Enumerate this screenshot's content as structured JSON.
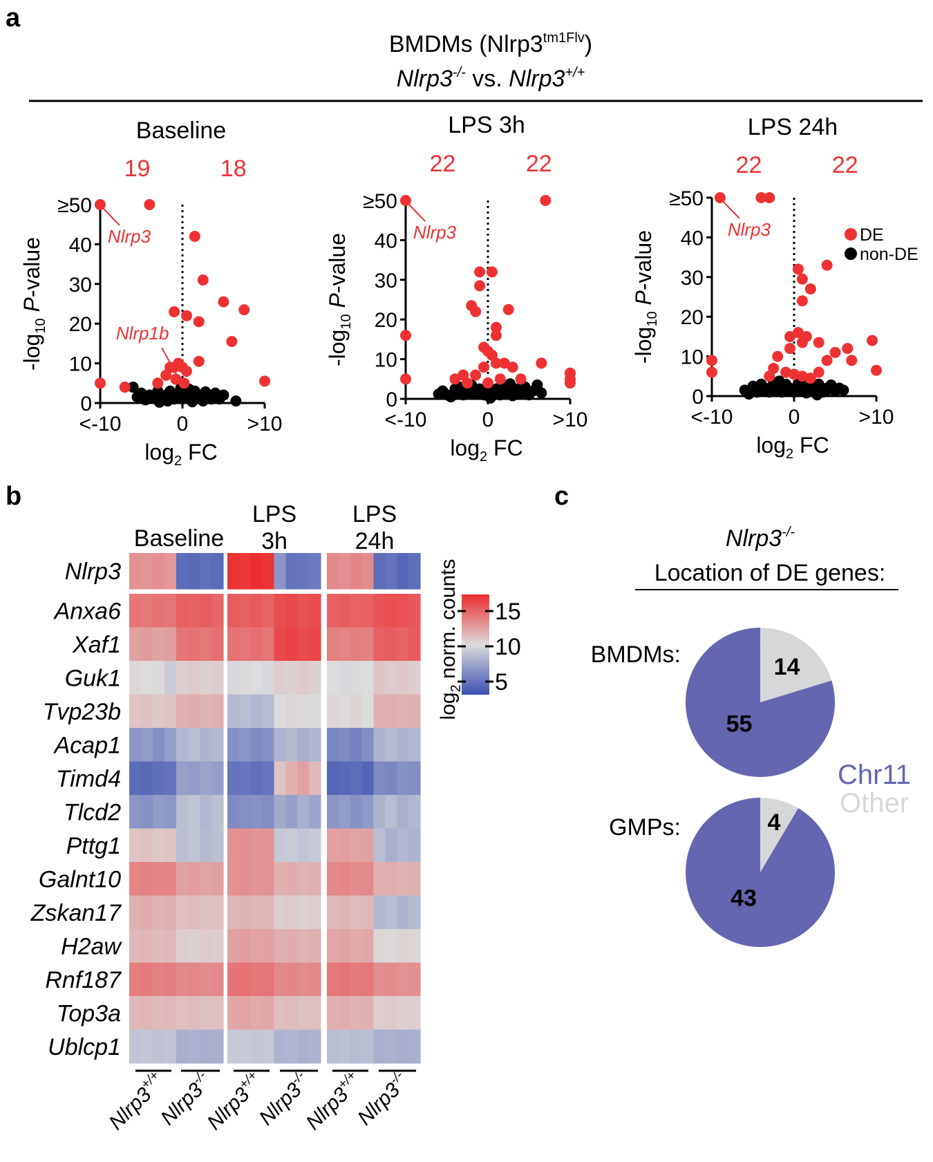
{
  "panel_labels": {
    "a": "a",
    "b": "b",
    "c": "c"
  },
  "header": {
    "line1_prefix": "BMDMs (Nlrp3",
    "line1_sup": "tm1Flv",
    "line1_suffix": ")",
    "line2_ko": "Nlrp3",
    "line2_ko_sup": "-/-",
    "line2_vs": " vs. ",
    "line2_wt": "Nlrp3",
    "line2_wt_sup": "+/+"
  },
  "colors": {
    "de": "#ee3233",
    "nonde": "#000000",
    "chr11": "#6466b0",
    "other": "#d6d7d9",
    "heat_high": "#ec2b2e",
    "heat_mid": "#dcdcdc",
    "heat_low": "#3a4fb0"
  },
  "chart_data": [
    {
      "type": "scatter",
      "panel": "a",
      "title": "Baseline",
      "count_down": "19",
      "count_up": "18",
      "xlabel": "log2 FC",
      "ylabel": "-log10 P-value",
      "xticks": [
        "<-10",
        "0",
        ">10"
      ],
      "yticks": [
        "0",
        "10",
        "20",
        "30",
        "40",
        "≥50"
      ],
      "xlim": [
        -10,
        10
      ],
      "ylim": [
        0,
        50
      ],
      "annotations": [
        {
          "text": "Nlrp3",
          "x": -10,
          "y": 50
        },
        {
          "text": "Nlrp1b",
          "x": -1.5,
          "y": 5
        }
      ],
      "de_points": [
        [
          -10,
          50
        ],
        [
          -4,
          50
        ],
        [
          1.5,
          42
        ],
        [
          -1,
          23
        ],
        [
          0.5,
          22
        ],
        [
          2,
          20.5
        ],
        [
          2.5,
          31
        ],
        [
          5,
          25.5
        ],
        [
          7.5,
          23.5
        ],
        [
          6,
          15.5
        ],
        [
          2,
          10.5
        ],
        [
          -10,
          5
        ],
        [
          -7,
          4
        ],
        [
          -1.5,
          9
        ],
        [
          -1,
          9
        ],
        [
          -0.5,
          10
        ],
        [
          0,
          9
        ],
        [
          0.5,
          8
        ],
        [
          -2,
          7
        ],
        [
          -0.8,
          6
        ],
        [
          0.2,
          5
        ],
        [
          10,
          5.5
        ],
        [
          -3,
          5
        ]
      ],
      "nonde_points": [
        [
          -6,
          4
        ],
        [
          -5,
          2.5
        ],
        [
          -4,
          2
        ],
        [
          -3.5,
          1.5
        ],
        [
          -3,
          3
        ],
        [
          -2.5,
          1
        ],
        [
          -2,
          2
        ],
        [
          -1.5,
          3
        ],
        [
          -1,
          1
        ],
        [
          -0.5,
          2.5
        ],
        [
          0,
          1
        ],
        [
          0.5,
          2
        ],
        [
          1,
          1
        ],
        [
          1.5,
          3
        ],
        [
          2,
          1.5
        ],
        [
          2.5,
          0.5
        ],
        [
          3,
          2
        ],
        [
          3.5,
          1
        ],
        [
          4,
          2.5
        ],
        [
          4.5,
          1
        ],
        [
          5,
          2
        ],
        [
          6.5,
          0.5
        ],
        [
          -4.5,
          0.8
        ],
        [
          -5.5,
          1.5
        ],
        [
          0.8,
          3.5
        ],
        [
          -0.2,
          3.8
        ],
        [
          1.2,
          0.3
        ],
        [
          2.8,
          2.8
        ],
        [
          -2.8,
          0.2
        ],
        [
          -1.8,
          0.5
        ]
      ]
    },
    {
      "type": "scatter",
      "panel": "a",
      "title": "LPS 3h",
      "count_down": "22",
      "count_up": "22",
      "xlabel": "log2 FC",
      "ylabel": "-log10 P-value",
      "xticks": [
        "<-10",
        "0",
        ">10"
      ],
      "yticks": [
        "0",
        "10",
        "20",
        "30",
        "40",
        "≥50"
      ],
      "xlim": [
        -10,
        10
      ],
      "ylim": [
        0,
        50
      ],
      "annotations": [
        {
          "text": "Nlrp3",
          "x": -10,
          "y": 50
        }
      ],
      "de_points": [
        [
          -10,
          50
        ],
        [
          7,
          50
        ],
        [
          -10,
          16
        ],
        [
          -10,
          5
        ],
        [
          -1,
          32
        ],
        [
          0.5,
          32
        ],
        [
          -1,
          28.5
        ],
        [
          -2,
          23.5
        ],
        [
          -1.5,
          22
        ],
        [
          2.5,
          22.5
        ],
        [
          1,
          18
        ],
        [
          1,
          16
        ],
        [
          -0.5,
          13
        ],
        [
          0,
          12
        ],
        [
          0.5,
          11
        ],
        [
          1,
          9
        ],
        [
          2,
          9
        ],
        [
          3,
          8
        ],
        [
          6.5,
          9
        ],
        [
          10,
          6.5
        ],
        [
          10,
          5
        ],
        [
          10,
          4
        ],
        [
          -0.5,
          8
        ],
        [
          -1.5,
          6
        ],
        [
          -3,
          6
        ],
        [
          -4,
          5
        ],
        [
          -2.5,
          4
        ],
        [
          1.5,
          5
        ],
        [
          0,
          4
        ],
        [
          4,
          5
        ]
      ],
      "nonde_points": [
        [
          -5,
          1
        ],
        [
          -4,
          2.5
        ],
        [
          -3.5,
          3
        ],
        [
          -3,
          1
        ],
        [
          -2.5,
          2
        ],
        [
          -2,
          3.5
        ],
        [
          -1.5,
          1.5
        ],
        [
          -1,
          2.5
        ],
        [
          -0.5,
          1
        ],
        [
          0,
          3
        ],
        [
          0.5,
          1.5
        ],
        [
          1,
          2.5
        ],
        [
          1.5,
          1
        ],
        [
          2,
          3
        ],
        [
          2.5,
          2
        ],
        [
          3,
          0.8
        ],
        [
          3.5,
          2.5
        ],
        [
          4,
          1.5
        ],
        [
          4.5,
          3
        ],
        [
          5,
          1
        ],
        [
          5.5,
          2
        ],
        [
          6,
          3.5
        ],
        [
          6.5,
          1.5
        ],
        [
          -4.5,
          0.5
        ],
        [
          -5.5,
          2
        ],
        [
          -6,
          1.2
        ],
        [
          0.3,
          0.2
        ],
        [
          2.7,
          3.8
        ]
      ]
    },
    {
      "type": "scatter",
      "panel": "a",
      "title": "LPS 24h",
      "count_down": "22",
      "count_up": "22",
      "xlabel": "log2 FC",
      "ylabel": "-log10 P-value",
      "xticks": [
        "<-10",
        "0",
        ">10"
      ],
      "yticks": [
        "0",
        "10",
        "20",
        "30",
        "40",
        "≥50"
      ],
      "xlim": [
        -10,
        10
      ],
      "ylim": [
        0,
        50
      ],
      "annotations": [
        {
          "text": "Nlrp3",
          "x": -9,
          "y": 50
        }
      ],
      "de_points": [
        [
          -9,
          50
        ],
        [
          -4,
          50
        ],
        [
          -3,
          50
        ],
        [
          0.5,
          32
        ],
        [
          1,
          29.5
        ],
        [
          2,
          27
        ],
        [
          4,
          33
        ],
        [
          1,
          24
        ],
        [
          0.5,
          16
        ],
        [
          1.5,
          15
        ],
        [
          1,
          13.5
        ],
        [
          -0.5,
          15
        ],
        [
          -0.5,
          12
        ],
        [
          3,
          13.5
        ],
        [
          6.5,
          12
        ],
        [
          5,
          11
        ],
        [
          10,
          6.5
        ],
        [
          9.5,
          14
        ],
        [
          -10,
          9
        ],
        [
          -10,
          6
        ],
        [
          -2.5,
          7
        ],
        [
          -2,
          10
        ],
        [
          -1,
          6
        ],
        [
          0,
          5.5
        ],
        [
          1,
          5
        ],
        [
          2,
          4.5
        ],
        [
          3,
          6
        ],
        [
          7,
          9
        ],
        [
          -3,
          5
        ],
        [
          4,
          9
        ]
      ],
      "nonde_points": [
        [
          -6,
          1.5
        ],
        [
          -5,
          2.5
        ],
        [
          -4.5,
          1
        ],
        [
          -4,
          3
        ],
        [
          -3.5,
          2
        ],
        [
          -3,
          1
        ],
        [
          -2.5,
          3.5
        ],
        [
          -2,
          2
        ],
        [
          -1.5,
          1
        ],
        [
          -1,
          3
        ],
        [
          -0.5,
          2
        ],
        [
          0,
          1
        ],
        [
          0.5,
          3
        ],
        [
          1,
          2
        ],
        [
          1.5,
          0.8
        ],
        [
          2,
          2.5
        ],
        [
          2.5,
          1.5
        ],
        [
          3,
          3
        ],
        [
          3.5,
          1
        ],
        [
          4,
          2
        ],
        [
          4.5,
          2.8
        ],
        [
          5,
          1.2
        ],
        [
          5.5,
          2
        ],
        [
          6,
          1.5
        ],
        [
          -5.5,
          0.5
        ],
        [
          -1.8,
          3.8
        ],
        [
          0.8,
          3.8
        ],
        [
          2.8,
          0.3
        ]
      ]
    },
    {
      "type": "heatmap",
      "panel": "b",
      "group_titles": [
        [
          "Baseline"
        ],
        [
          "LPS",
          "3h"
        ],
        [
          "LPS",
          "24h"
        ]
      ],
      "colorbar_label": "log2 norm. counts",
      "colorbar_ticks": [
        "15",
        "10",
        "5"
      ],
      "zlim": [
        3,
        16
      ],
      "column_groups": [
        "Nlrp3+/+",
        "Nlrp3-/-",
        "Nlrp3+/+",
        "Nlrp3-/-",
        "Nlrp3+/+",
        "Nlrp3-/-"
      ],
      "genotype_base": "Nlrp3",
      "genotype_sups": [
        "+/+",
        "-/-",
        "+/+",
        "-/-",
        "+/+",
        "-/-"
      ],
      "rows": [
        "Nlrp3",
        "Anxa6",
        "Xaf1",
        "Guk1",
        "Tvp23b",
        "Acap1",
        "Timd4",
        "Tlcd2",
        "Pttg1",
        "Galnt10",
        "Zskan17",
        "H2aw",
        "Rnf187",
        "Top3a",
        "Ublcp1"
      ],
      "values": [
        [
          12.5,
          12.4,
          12.6,
          12.3,
          4.5,
          4.3,
          4.6,
          4.4,
          15.8,
          15.6,
          15.9,
          15.7,
          6.5,
          4.8,
          5.0,
          5.2,
          12.8,
          12.6,
          12.9,
          12.7,
          4.5,
          4.8,
          4.2,
          4.6
        ],
        [
          13.5,
          13.4,
          13.6,
          13.5,
          14.2,
          14.1,
          14.3,
          14.0,
          14.3,
          14.2,
          14.4,
          14.1,
          14.8,
          15.0,
          14.7,
          14.9,
          14.2,
          14.3,
          14.1,
          14.2,
          14.6,
          14.8,
          14.7,
          14.5
        ],
        [
          12.0,
          12.2,
          11.9,
          12.1,
          13.5,
          13.6,
          13.4,
          13.7,
          13.6,
          13.5,
          13.7,
          13.5,
          15.0,
          15.2,
          14.9,
          15.1,
          13.1,
          13.0,
          13.2,
          13.1,
          14.2,
          14.3,
          14.1,
          14.4
        ],
        [
          10.2,
          10.0,
          10.1,
          9.2,
          10.5,
          10.6,
          10.4,
          10.5,
          9.8,
          9.9,
          10.0,
          9.8,
          10.5,
          10.4,
          10.6,
          10.4,
          10.0,
          9.8,
          10.1,
          10.0,
          10.8,
          10.6,
          10.7,
          10.5
        ],
        [
          10.8,
          10.9,
          10.7,
          10.8,
          11.5,
          11.6,
          11.4,
          11.5,
          8.3,
          8.5,
          8.2,
          8.4,
          10.0,
          10.2,
          10.1,
          9.9,
          10.2,
          10.1,
          10.3,
          10.0,
          11.5,
          11.6,
          11.4,
          11.5
        ],
        [
          6.5,
          6.8,
          6.2,
          7.0,
          8.2,
          8.5,
          8.0,
          8.3,
          6.2,
          6.5,
          6.0,
          6.3,
          8.0,
          8.3,
          7.8,
          8.1,
          5.8,
          6.0,
          5.5,
          6.1,
          8.0,
          8.3,
          7.9,
          8.2
        ],
        [
          4.5,
          4.3,
          4.6,
          4.8,
          7.0,
          6.8,
          7.2,
          6.9,
          4.8,
          5.0,
          4.6,
          4.9,
          10.8,
          11.5,
          12.0,
          11.2,
          4.2,
          4.3,
          4.5,
          4.1,
          6.0,
          5.8,
          6.3,
          6.1
        ],
        [
          6.5,
          6.3,
          6.8,
          6.6,
          8.5,
          8.8,
          8.2,
          8.6,
          6.0,
          6.2,
          6.3,
          6.1,
          7.5,
          7.0,
          7.8,
          7.2,
          6.5,
          6.8,
          6.3,
          6.7,
          8.0,
          8.5,
          7.8,
          8.2
        ],
        [
          10.8,
          10.9,
          10.7,
          10.8,
          8.5,
          8.8,
          8.3,
          8.6,
          12.5,
          12.6,
          12.4,
          12.5,
          9.0,
          9.2,
          8.8,
          9.1,
          12.0,
          12.1,
          11.9,
          12.0,
          8.5,
          7.8,
          8.2,
          8.0
        ],
        [
          13.0,
          13.1,
          12.9,
          13.0,
          12.0,
          12.1,
          11.9,
          12.0,
          12.5,
          12.6,
          12.4,
          12.5,
          11.5,
          11.6,
          11.4,
          11.5,
          12.8,
          12.9,
          12.7,
          12.8,
          11.5,
          11.6,
          11.4,
          11.5
        ],
        [
          11.5,
          11.6,
          11.4,
          11.5,
          11.0,
          11.1,
          10.9,
          11.0,
          11.3,
          11.4,
          11.2,
          11.3,
          10.5,
          10.6,
          10.4,
          10.5,
          11.2,
          11.3,
          11.1,
          11.2,
          8.2,
          8.5,
          8.0,
          8.3
        ],
        [
          11.2,
          11.3,
          11.1,
          11.2,
          10.5,
          10.4,
          10.6,
          10.5,
          12.0,
          12.1,
          11.9,
          12.0,
          11.5,
          11.6,
          11.4,
          11.5,
          11.8,
          11.9,
          11.7,
          11.8,
          10.2,
          10.1,
          10.3,
          10.2
        ],
        [
          13.2,
          13.3,
          13.1,
          13.2,
          12.8,
          12.9,
          12.7,
          12.8,
          13.5,
          13.6,
          13.4,
          13.5,
          12.8,
          12.9,
          12.7,
          12.8,
          13.4,
          13.5,
          13.3,
          13.4,
          12.6,
          12.7,
          12.5,
          12.6
        ],
        [
          11.2,
          11.3,
          11.1,
          11.2,
          11.0,
          11.1,
          10.9,
          11.0,
          11.8,
          11.9,
          11.7,
          11.8,
          11.0,
          11.1,
          10.9,
          11.0,
          11.5,
          11.6,
          11.4,
          11.5,
          10.5,
          10.6,
          10.4,
          10.5
        ],
        [
          8.8,
          8.9,
          8.7,
          8.8,
          7.8,
          7.9,
          7.7,
          7.8,
          9.0,
          9.1,
          8.9,
          9.0,
          8.0,
          8.1,
          7.9,
          8.0,
          8.5,
          8.6,
          8.4,
          8.5,
          7.8,
          7.9,
          7.7,
          7.8
        ]
      ]
    },
    {
      "type": "pie",
      "panel": "c",
      "title_gene": "Nlrp3",
      "title_sup": "-/-",
      "subtitle": "Location of DE genes:",
      "legend": [
        {
          "label": "Chr11",
          "color": "#6466b0"
        },
        {
          "label": "Other",
          "color": "#d6d7d9"
        }
      ],
      "pies": [
        {
          "label": "BMDMs:",
          "slices": [
            {
              "name": "Chr11",
              "value": 55
            },
            {
              "name": "Other",
              "value": 14
            }
          ]
        },
        {
          "label": "GMPs:",
          "slices": [
            {
              "name": "Chr11",
              "value": 43
            },
            {
              "name": "Other",
              "value": 4
            }
          ]
        }
      ]
    }
  ],
  "legend_a": {
    "de": "DE",
    "nonde": "non-DE"
  }
}
